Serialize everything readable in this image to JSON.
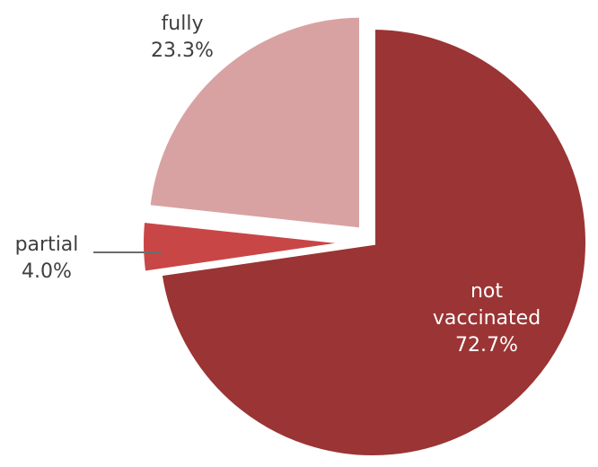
{
  "chart_data": {
    "type": "pie",
    "title": "",
    "slices": [
      {
        "label": "not vaccinated",
        "label_lines": [
          "not",
          "vaccinated"
        ],
        "value": 72.7,
        "value_label": "72.7%",
        "color": "#9b3434",
        "exploded": false
      },
      {
        "label": "partial",
        "label_lines": [
          "partial"
        ],
        "value": 4.0,
        "value_label": "4.0%",
        "color": "#c94646",
        "exploded": true
      },
      {
        "label": "fully",
        "label_lines": [
          "fully"
        ],
        "value": 23.3,
        "value_label": "23.3%",
        "color": "#d9a2a2",
        "exploded": true
      }
    ],
    "start": "12 o'clock",
    "direction": "clockwise",
    "legend": "none",
    "slice_border_color": "#ffffff"
  }
}
